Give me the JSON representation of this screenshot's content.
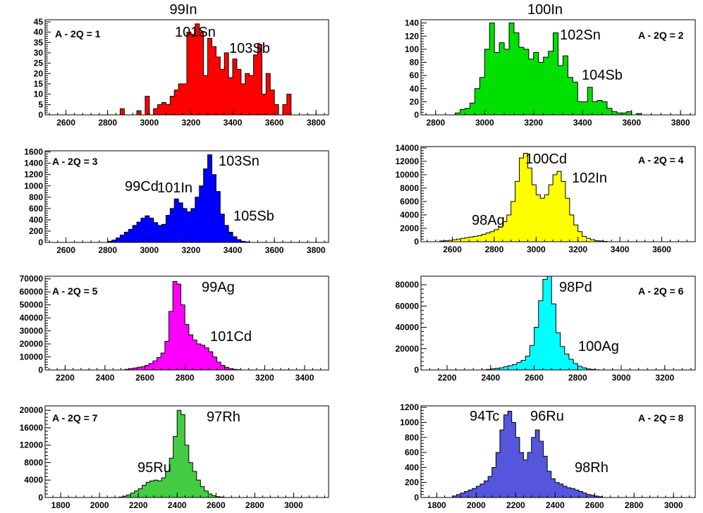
{
  "figure": {
    "column_titles": [
      "99In",
      "100In"
    ]
  },
  "chart_data": [
    {
      "type": "histogram",
      "column_title": "99In",
      "label": "A - 2Q = 1",
      "color": "#ff0000",
      "xlim": [
        2500,
        3860
      ],
      "ylim": [
        0,
        46
      ],
      "xticks": [
        2600,
        2800,
        3000,
        3200,
        3400,
        3600,
        3800
      ],
      "yticks": [
        0,
        5,
        10,
        15,
        20,
        25,
        30,
        35,
        40,
        45
      ],
      "bin_start": 2860,
      "bin_width": 20,
      "values": [
        3,
        0,
        0,
        0,
        2,
        0,
        9,
        0,
        3,
        5,
        6,
        5,
        9,
        12,
        15,
        15,
        40,
        39,
        44,
        40,
        19,
        37,
        33,
        28,
        22,
        30,
        18,
        27,
        22,
        15,
        20,
        19,
        29,
        34,
        10,
        20,
        12,
        5,
        0,
        5,
        10
      ],
      "annotations": [
        "101Sn",
        "103Sb"
      ]
    },
    {
      "type": "histogram",
      "column_title": "100In",
      "label": "A - 2Q = 2",
      "color": "#00e000",
      "xlim": [
        2740,
        3860
      ],
      "ylim": [
        0,
        145
      ],
      "xticks": [
        2800,
        3000,
        3200,
        3400,
        3600,
        3800
      ],
      "yticks": [
        0,
        20,
        40,
        60,
        80,
        100,
        120,
        140
      ],
      "bin_start": 2880,
      "bin_width": 20,
      "values": [
        3,
        8,
        10,
        18,
        40,
        57,
        100,
        140,
        95,
        110,
        100,
        140,
        125,
        103,
        100,
        85,
        95,
        80,
        88,
        97,
        125,
        75,
        90,
        57,
        50,
        20,
        20,
        42,
        20,
        22,
        20,
        10,
        5,
        3,
        3,
        5,
        0,
        2
      ],
      "annotations": [
        "102Sn",
        "104Sb"
      ]
    },
    {
      "type": "histogram",
      "column_title": "99In",
      "label": "A - 2Q = 3",
      "color": "#0000ff",
      "xlim": [
        2500,
        3860
      ],
      "ylim": [
        0,
        1620
      ],
      "xticks": [
        2600,
        2800,
        3000,
        3200,
        3400,
        3600,
        3800
      ],
      "yticks": [
        0,
        200,
        400,
        600,
        800,
        1000,
        1200,
        1400,
        1600
      ],
      "bin_start": 2800,
      "bin_width": 20,
      "values": [
        20,
        40,
        80,
        130,
        180,
        230,
        300,
        360,
        430,
        470,
        430,
        350,
        300,
        320,
        480,
        600,
        770,
        700,
        600,
        540,
        600,
        800,
        1000,
        1300,
        1550,
        1200,
        900,
        500,
        300,
        180,
        100,
        50,
        20,
        10
      ],
      "annotations": [
        "99Cd",
        "101In",
        "103Sn",
        "105Sb"
      ]
    },
    {
      "type": "histogram",
      "column_title": "100In",
      "label": "A - 2Q = 4",
      "color": "#ffff00",
      "xlim": [
        2450,
        3760
      ],
      "ylim": [
        0,
        14200
      ],
      "xticks": [
        2600,
        2800,
        3000,
        3200,
        3400,
        3600
      ],
      "yticks": [
        0,
        2000,
        4000,
        6000,
        8000,
        10000,
        12000,
        14000
      ],
      "bin_start": 2540,
      "bin_width": 20,
      "values": [
        100,
        150,
        200,
        300,
        400,
        500,
        600,
        700,
        800,
        900,
        1100,
        1300,
        1500,
        1800,
        2200,
        3000,
        4000,
        6000,
        9000,
        12500,
        13200,
        11000,
        8500,
        7000,
        6500,
        7000,
        8500,
        10000,
        10500,
        9000,
        6500,
        4000,
        2500,
        1500,
        800,
        500,
        300,
        150,
        100,
        50
      ],
      "annotations": [
        "98Ag",
        "100Cd",
        "102In"
      ]
    },
    {
      "type": "histogram",
      "column_title": "99In",
      "label": "A - 2Q = 5",
      "color": "#ff00ff",
      "xlim": [
        2100,
        3520
      ],
      "ylim": [
        0,
        72000
      ],
      "xticks": [
        2200,
        2400,
        2600,
        2800,
        3000,
        3200,
        3400
      ],
      "yticks": [
        0,
        10000,
        20000,
        30000,
        40000,
        50000,
        60000,
        70000
      ],
      "bin_start": 2500,
      "bin_width": 20,
      "values": [
        500,
        1000,
        1500,
        2000,
        2500,
        3500,
        5000,
        7000,
        9500,
        13000,
        22000,
        45000,
        68000,
        66000,
        50000,
        35000,
        27000,
        23000,
        20000,
        19000,
        17000,
        14000,
        10000,
        6000,
        3500,
        2000,
        1000,
        500,
        200
      ],
      "annotations": [
        "99Ag",
        "101Cd"
      ]
    },
    {
      "type": "histogram",
      "column_title": "100In",
      "label": "A - 2Q = 6",
      "color": "#00ffff",
      "xlim": [
        2080,
        3340
      ],
      "ylim": [
        0,
        88000
      ],
      "xticks": [
        2200,
        2400,
        2600,
        2800,
        3000,
        3200
      ],
      "yticks": [
        0,
        20000,
        40000,
        60000,
        80000
      ],
      "bin_start": 2380,
      "bin_width": 20,
      "values": [
        500,
        1000,
        1500,
        2000,
        3000,
        4000,
        5000,
        7000,
        9000,
        13000,
        23000,
        40000,
        65000,
        85000,
        88000,
        62000,
        35000,
        22000,
        15000,
        10000,
        6000,
        3500,
        2000,
        1000,
        500,
        200
      ],
      "annotations": [
        "98Pd",
        "100Ag"
      ]
    },
    {
      "type": "histogram",
      "column_title": "99In",
      "label": "A - 2Q = 7",
      "color": "#44cc44",
      "xlim": [
        1720,
        3180
      ],
      "ylim": [
        0,
        21000
      ],
      "xticks": [
        1800,
        2000,
        2200,
        2400,
        2600,
        2800,
        3000
      ],
      "yticks": [
        0,
        4000,
        8000,
        12000,
        16000,
        20000
      ],
      "bin_start": 2100,
      "bin_width": 20,
      "values": [
        100,
        300,
        600,
        1000,
        1500,
        2000,
        2800,
        3500,
        3800,
        4000,
        3800,
        4500,
        6000,
        9000,
        14000,
        20000,
        19000,
        12000,
        8000,
        6000,
        4000,
        2500,
        1500,
        800,
        400,
        200,
        100
      ],
      "annotations": [
        "95Ru",
        "97Rh"
      ]
    },
    {
      "type": "histogram",
      "column_title": "100In",
      "label": "A - 2Q = 8",
      "color": "#5555dd",
      "xlim": [
        1720,
        3110
      ],
      "ylim": [
        0,
        1220
      ],
      "xticks": [
        1800,
        2000,
        2200,
        2400,
        2600,
        2800,
        3000
      ],
      "yticks": [
        0,
        200,
        400,
        600,
        800,
        1000,
        1200
      ],
      "bin_start": 1880,
      "bin_width": 20,
      "values": [
        20,
        40,
        60,
        80,
        100,
        120,
        150,
        180,
        220,
        280,
        400,
        600,
        900,
        1100,
        1150,
        1000,
        800,
        600,
        500,
        600,
        800,
        900,
        750,
        550,
        350,
        250,
        200,
        180,
        150,
        130,
        120,
        100,
        80,
        60,
        40,
        30,
        20,
        10
      ],
      "annotations": [
        "94Tc",
        "96Ru",
        "98Rh"
      ]
    }
  ]
}
